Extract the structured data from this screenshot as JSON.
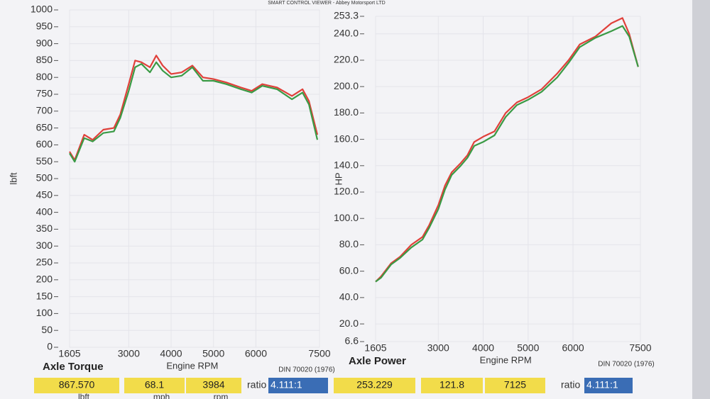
{
  "title": "SMART CONTROL VIEWER - Abbey Motorsport LTD",
  "chart_data": [
    {
      "type": "line",
      "title": "Axle Torque",
      "x_label": "Engine RPM",
      "y_label": "lbft",
      "note": "DIN 70020 (1976)",
      "x": [
        1605,
        1725,
        1950,
        2150,
        2400,
        2650,
        2800,
        3000,
        3150,
        3300,
        3500,
        3650,
        3800,
        4000,
        4250,
        4500,
        4750,
        5000,
        5300,
        5650,
        5900,
        6150,
        6500,
        6850,
        7100,
        7250,
        7450
      ],
      "xlim": [
        1605,
        7500
      ],
      "xticks": [
        1605,
        3000,
        4000,
        5000,
        6000,
        7500
      ],
      "ylim": [
        0,
        1000
      ],
      "yticks": [
        0,
        50,
        100,
        150,
        200,
        250,
        300,
        350,
        400,
        450,
        500,
        550,
        600,
        650,
        700,
        750,
        800,
        850,
        900,
        950,
        1000
      ],
      "grid": true,
      "series": [
        {
          "color": "#e0403a",
          "values": [
            580,
            555,
            630,
            615,
            645,
            650,
            690,
            780,
            850,
            845,
            830,
            865,
            835,
            810,
            815,
            835,
            800,
            795,
            785,
            770,
            760,
            780,
            770,
            745,
            765,
            730,
            630
          ]
        },
        {
          "color": "#3a9a45",
          "values": [
            575,
            550,
            620,
            610,
            635,
            640,
            680,
            760,
            830,
            840,
            815,
            845,
            820,
            800,
            805,
            830,
            790,
            790,
            780,
            765,
            755,
            775,
            765,
            735,
            755,
            720,
            615
          ]
        }
      ],
      "readouts": [
        "867.570",
        "68.1",
        "3984"
      ],
      "readout_units": [
        "lbft",
        "mph",
        "rpm"
      ],
      "ratio_label": "ratio",
      "ratio": "4.111:1"
    },
    {
      "type": "line",
      "title": "Axle Power",
      "x_label": "Engine RPM",
      "y_label": "HP",
      "note": "DIN 70020 (1976)",
      "x": [
        1605,
        1725,
        1950,
        2150,
        2400,
        2650,
        2800,
        3000,
        3150,
        3300,
        3500,
        3650,
        3800,
        4000,
        4250,
        4500,
        4750,
        5000,
        5300,
        5650,
        5900,
        6150,
        6500,
        6850,
        7100,
        7250,
        7450
      ],
      "xlim": [
        1605,
        7500
      ],
      "xticks": [
        1605,
        3000,
        4000,
        5000,
        6000,
        7500
      ],
      "ylim": [
        6.6,
        253.3
      ],
      "yticks": [
        6.6,
        {
          "value": 20,
          "label": "20.0"
        },
        {
          "value": 40,
          "label": "40.0"
        },
        {
          "value": 60,
          "label": "60.0"
        },
        {
          "value": 80,
          "label": "80.0"
        },
        {
          "value": 100,
          "label": "100.0"
        },
        {
          "value": 120,
          "label": "120.0"
        },
        {
          "value": 140,
          "label": "140.0"
        },
        {
          "value": 160,
          "label": "160.0"
        },
        {
          "value": 180,
          "label": "180.0"
        },
        {
          "value": 200,
          "label": "200.0"
        },
        {
          "value": 220,
          "label": "220.0"
        },
        {
          "value": 240,
          "label": "240.0"
        },
        253.3
      ],
      "grid": true,
      "series": [
        {
          "color": "#e0403a",
          "values": [
            52,
            56,
            66,
            71,
            80,
            86,
            95,
            110,
            125,
            135,
            142,
            148,
            158,
            162,
            166,
            180,
            188,
            192,
            198,
            210,
            220,
            232,
            238,
            248,
            252,
            240,
            215
          ]
        },
        {
          "color": "#3a9a45",
          "values": [
            52,
            55,
            65,
            70,
            78,
            84,
            93,
            107,
            122,
            133,
            140,
            146,
            155,
            158,
            163,
            177,
            186,
            190,
            196,
            207,
            218,
            230,
            237,
            242,
            246,
            238,
            215
          ]
        }
      ],
      "readouts": [
        "253.229",
        "121.8",
        "7125"
      ],
      "ratio_label": "ratio",
      "ratio": "4.111:1"
    }
  ]
}
